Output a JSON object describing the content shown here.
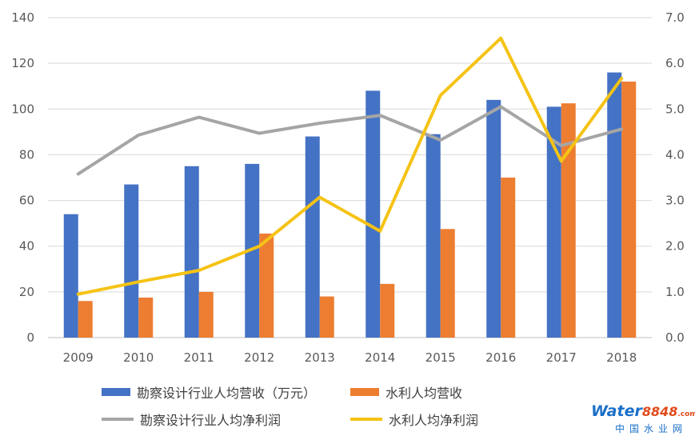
{
  "chart_data": {
    "type": "bar",
    "categories": [
      "2009",
      "2010",
      "2011",
      "2012",
      "2013",
      "2014",
      "2015",
      "2016",
      "2017",
      "2018"
    ],
    "left_axis": {
      "ylim": [
        0,
        140
      ],
      "ticks": [
        "0",
        "20",
        "40",
        "60",
        "80",
        "100",
        "120",
        "140"
      ]
    },
    "right_axis": {
      "ylim": [
        0,
        7
      ],
      "ticks": [
        "0.0",
        "1.0",
        "2.0",
        "3.0",
        "4.0",
        "5.0",
        "6.0",
        "7.0"
      ]
    },
    "series": [
      {
        "name": "勘察设计行业人均营收（万元）",
        "kind": "bar",
        "axis": "left",
        "color": "#4472c4",
        "values": [
          54,
          67,
          75,
          76,
          88,
          108,
          89,
          104,
          101,
          116
        ]
      },
      {
        "name": "水利人均营收",
        "kind": "bar",
        "axis": "left",
        "color": "#ed7d31",
        "values": [
          16,
          17.5,
          20,
          45.5,
          18,
          23.5,
          47.5,
          70,
          102.5,
          112
        ]
      },
      {
        "name": "勘察设计行业人均净利润",
        "kind": "line",
        "axis": "right",
        "color": "#a5a5a5",
        "values": [
          3.58,
          4.43,
          4.82,
          4.47,
          4.69,
          4.86,
          4.32,
          5.05,
          4.2,
          4.56
        ]
      },
      {
        "name": "水利人均净利润",
        "kind": "line",
        "axis": "right",
        "color": "#f5c315",
        "values": [
          0.95,
          1.22,
          1.47,
          2.0,
          3.07,
          2.33,
          5.3,
          6.55,
          3.86,
          5.67
        ]
      }
    ],
    "legend_position": "bottom",
    "grid": true
  },
  "watermark": {
    "brand": "Water",
    "number": "8848",
    "domain": ".com",
    "cn": "中国水业网"
  }
}
